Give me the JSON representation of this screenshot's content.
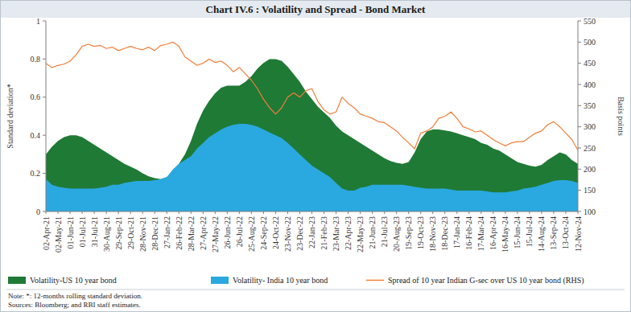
{
  "chart_data": {
    "type": "area",
    "title": "Chart IV.6 : Volatility and Spread - Bond Market",
    "y_label": "Standard deviation*",
    "y2_label": "Basis points",
    "note": "Note: *: 12-months rolling standard deviation.",
    "source": "Sources: Bloomberg; and RBI staff estimates.",
    "categories": [
      "02-Apr-21",
      null,
      "02-May-21",
      null,
      "01-Jun-21",
      null,
      "01-Jul-21",
      null,
      "31-Jul-21",
      null,
      "30-Aug-21",
      null,
      "29-Sep-21",
      null,
      "29-Oct-21",
      null,
      "28-Nov-21",
      null,
      "28-Dec-21",
      null,
      "27-Jan-22",
      null,
      "26-Feb-22",
      null,
      "28-Mar-22",
      null,
      "27-Apr-22",
      null,
      "27-May-22",
      null,
      "26-Jun-22",
      null,
      "26-Jul-22",
      null,
      "25-Aug-22",
      null,
      "24-Sep-22",
      null,
      "24-Oct-22",
      null,
      "23-Nov-22",
      null,
      "23-Dec-22",
      null,
      "22-Jan-23",
      null,
      "21-Feb-23",
      null,
      "23-Mar-23",
      null,
      "22-Apr-23",
      null,
      "22-May-23",
      null,
      "21-Jun-23",
      null,
      "21-Jul-23",
      null,
      "20-Aug-23",
      null,
      "19-Sep-23",
      null,
      "19-Oct-23",
      null,
      "18-Nov-23",
      null,
      "18-Dec-23",
      null,
      "17-Jan-24",
      null,
      "16-Feb-24",
      null,
      "17-Mar-24",
      null,
      "16-Apr-24",
      null,
      "16-May-24",
      null,
      "15-Jun-24",
      null,
      "15-Jul-24",
      null,
      "14-Aug-24",
      null,
      "13-Sep-24",
      null,
      "13-Oct-24",
      null,
      "12-Nov-24"
    ],
    "series": [
      {
        "name": "Volatility-US 10 year bond",
        "type": "area",
        "color": "#1f7a35",
        "values": [
          0.3,
          0.34,
          0.37,
          0.39,
          0.4,
          0.4,
          0.39,
          0.37,
          0.35,
          0.33,
          0.31,
          0.29,
          0.27,
          0.25,
          0.235,
          0.22,
          0.2,
          0.185,
          0.175,
          0.17,
          0.18,
          0.21,
          0.25,
          0.3,
          0.37,
          0.46,
          0.53,
          0.58,
          0.62,
          0.65,
          0.66,
          0.66,
          0.66,
          0.68,
          0.71,
          0.75,
          0.78,
          0.8,
          0.8,
          0.79,
          0.76,
          0.72,
          0.68,
          0.63,
          0.59,
          0.55,
          0.52,
          0.49,
          0.45,
          0.42,
          0.4,
          0.38,
          0.36,
          0.34,
          0.32,
          0.3,
          0.28,
          0.265,
          0.255,
          0.25,
          0.26,
          0.31,
          0.38,
          0.42,
          0.43,
          0.43,
          0.425,
          0.42,
          0.41,
          0.4,
          0.39,
          0.38,
          0.36,
          0.35,
          0.33,
          0.32,
          0.3,
          0.28,
          0.26,
          0.25,
          0.24,
          0.235,
          0.245,
          0.27,
          0.29,
          0.31,
          0.3,
          0.27,
          0.25
        ]
      },
      {
        "name": "Volatility- India 10 year bond",
        "type": "area",
        "color": "#2aa9e0",
        "values": [
          0.17,
          0.14,
          0.13,
          0.125,
          0.12,
          0.12,
          0.12,
          0.12,
          0.12,
          0.125,
          0.13,
          0.14,
          0.14,
          0.15,
          0.155,
          0.16,
          0.16,
          0.16,
          0.165,
          0.17,
          0.18,
          0.22,
          0.25,
          0.27,
          0.29,
          0.33,
          0.36,
          0.39,
          0.41,
          0.43,
          0.445,
          0.455,
          0.46,
          0.46,
          0.455,
          0.445,
          0.43,
          0.415,
          0.4,
          0.385,
          0.36,
          0.33,
          0.3,
          0.27,
          0.24,
          0.22,
          0.2,
          0.18,
          0.15,
          0.12,
          0.11,
          0.11,
          0.125,
          0.13,
          0.14,
          0.14,
          0.14,
          0.14,
          0.14,
          0.14,
          0.135,
          0.13,
          0.125,
          0.12,
          0.12,
          0.12,
          0.12,
          0.115,
          0.11,
          0.11,
          0.11,
          0.11,
          0.11,
          0.105,
          0.1,
          0.1,
          0.1,
          0.105,
          0.11,
          0.12,
          0.125,
          0.13,
          0.14,
          0.15,
          0.16,
          0.165,
          0.165,
          0.16,
          0.15
        ]
      },
      {
        "name": "Spread of 10 year Indian G-sec over US 10 year bond (RHS)",
        "type": "line",
        "axis": "y2",
        "color": "#f07f3a",
        "values": [
          450,
          440,
          445,
          448,
          455,
          470,
          490,
          495,
          490,
          492,
          485,
          488,
          480,
          485,
          490,
          485,
          482,
          488,
          480,
          492,
          495,
          500,
          490,
          465,
          455,
          445,
          450,
          460,
          452,
          455,
          445,
          430,
          440,
          425,
          410,
          390,
          365,
          345,
          330,
          345,
          370,
          380,
          370,
          385,
          390,
          360,
          340,
          330,
          335,
          370,
          355,
          345,
          330,
          325,
          320,
          312,
          310,
          300,
          290,
          275,
          262,
          248,
          285,
          290,
          300,
          320,
          325,
          335,
          320,
          300,
          295,
          288,
          290,
          280,
          270,
          262,
          255,
          262,
          265,
          265,
          275,
          285,
          290,
          305,
          312,
          300,
          285,
          270,
          245
        ]
      }
    ],
    "ylim": [
      0,
      1
    ],
    "yticks": [
      0,
      0.2,
      0.4,
      0.6,
      0.8,
      1
    ],
    "y2lim": [
      100,
      550
    ],
    "y2ticks": [
      100,
      150,
      200,
      250,
      300,
      350,
      400,
      450,
      500,
      550
    ],
    "legend": "bottom"
  }
}
